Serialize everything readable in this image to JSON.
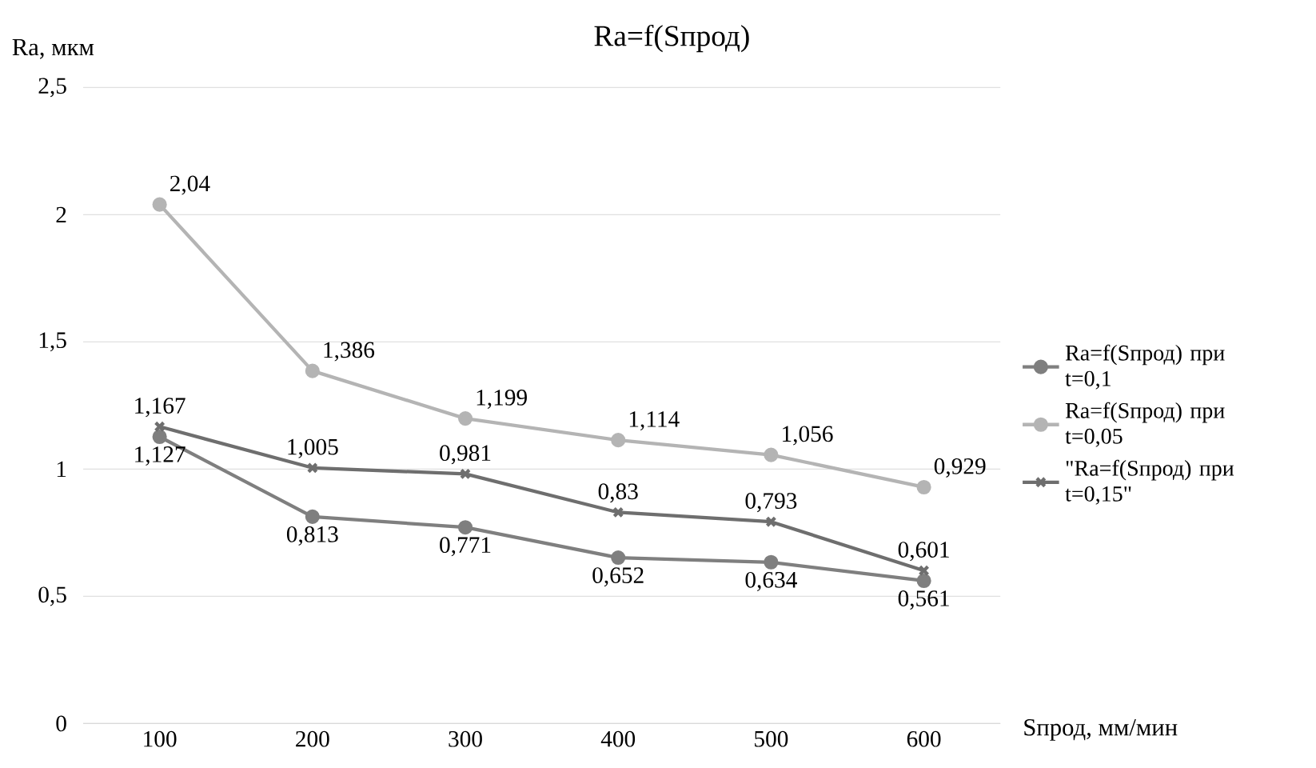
{
  "chart_data": {
    "type": "line",
    "title": "Ra=f(Sпрод)",
    "xlabel": "Sпрод, мм/мин",
    "ylabel": "Ra, мкм",
    "categories": [
      "100",
      "200",
      "300",
      "400",
      "500",
      "600"
    ],
    "ylim": [
      0,
      2.5
    ],
    "yticks": [
      0,
      {
        "value": 0.5,
        "label": "0,5"
      },
      1,
      {
        "value": 1.5,
        "label": "1,5"
      },
      2,
      {
        "value": 2.5,
        "label": "2,5"
      }
    ],
    "grid": "y",
    "legend": "right",
    "series": [
      {
        "name": "Ra=f(Sпрод) при t=0,1",
        "color": "#7f7f7f",
        "marker": "circle",
        "values": [
          1.127,
          0.813,
          0.771,
          0.652,
          0.634,
          0.561
        ],
        "value_labels": [
          "1,127",
          "0,813",
          "0,771",
          "0,652",
          "0,634",
          "0,561"
        ]
      },
      {
        "name": "Ra=f(Sпрод) при t=0,05",
        "color": "#b4b4b4",
        "marker": "circle",
        "values": [
          2.04,
          1.386,
          1.199,
          1.114,
          1.056,
          0.929
        ],
        "value_labels": [
          "2,04",
          "1,386",
          "1,199",
          "1,114",
          "1,056",
          "0,929"
        ]
      },
      {
        "name": "\"Ra=f(Sпрод) при t=0,15\"",
        "color": "#6e6e6e",
        "marker": "cross",
        "values": [
          1.167,
          1.005,
          0.981,
          0.83,
          0.793,
          0.601
        ],
        "value_labels": [
          "1,167",
          "1,005",
          "0,981",
          "0,83",
          "0,793",
          "0,601"
        ]
      }
    ]
  }
}
